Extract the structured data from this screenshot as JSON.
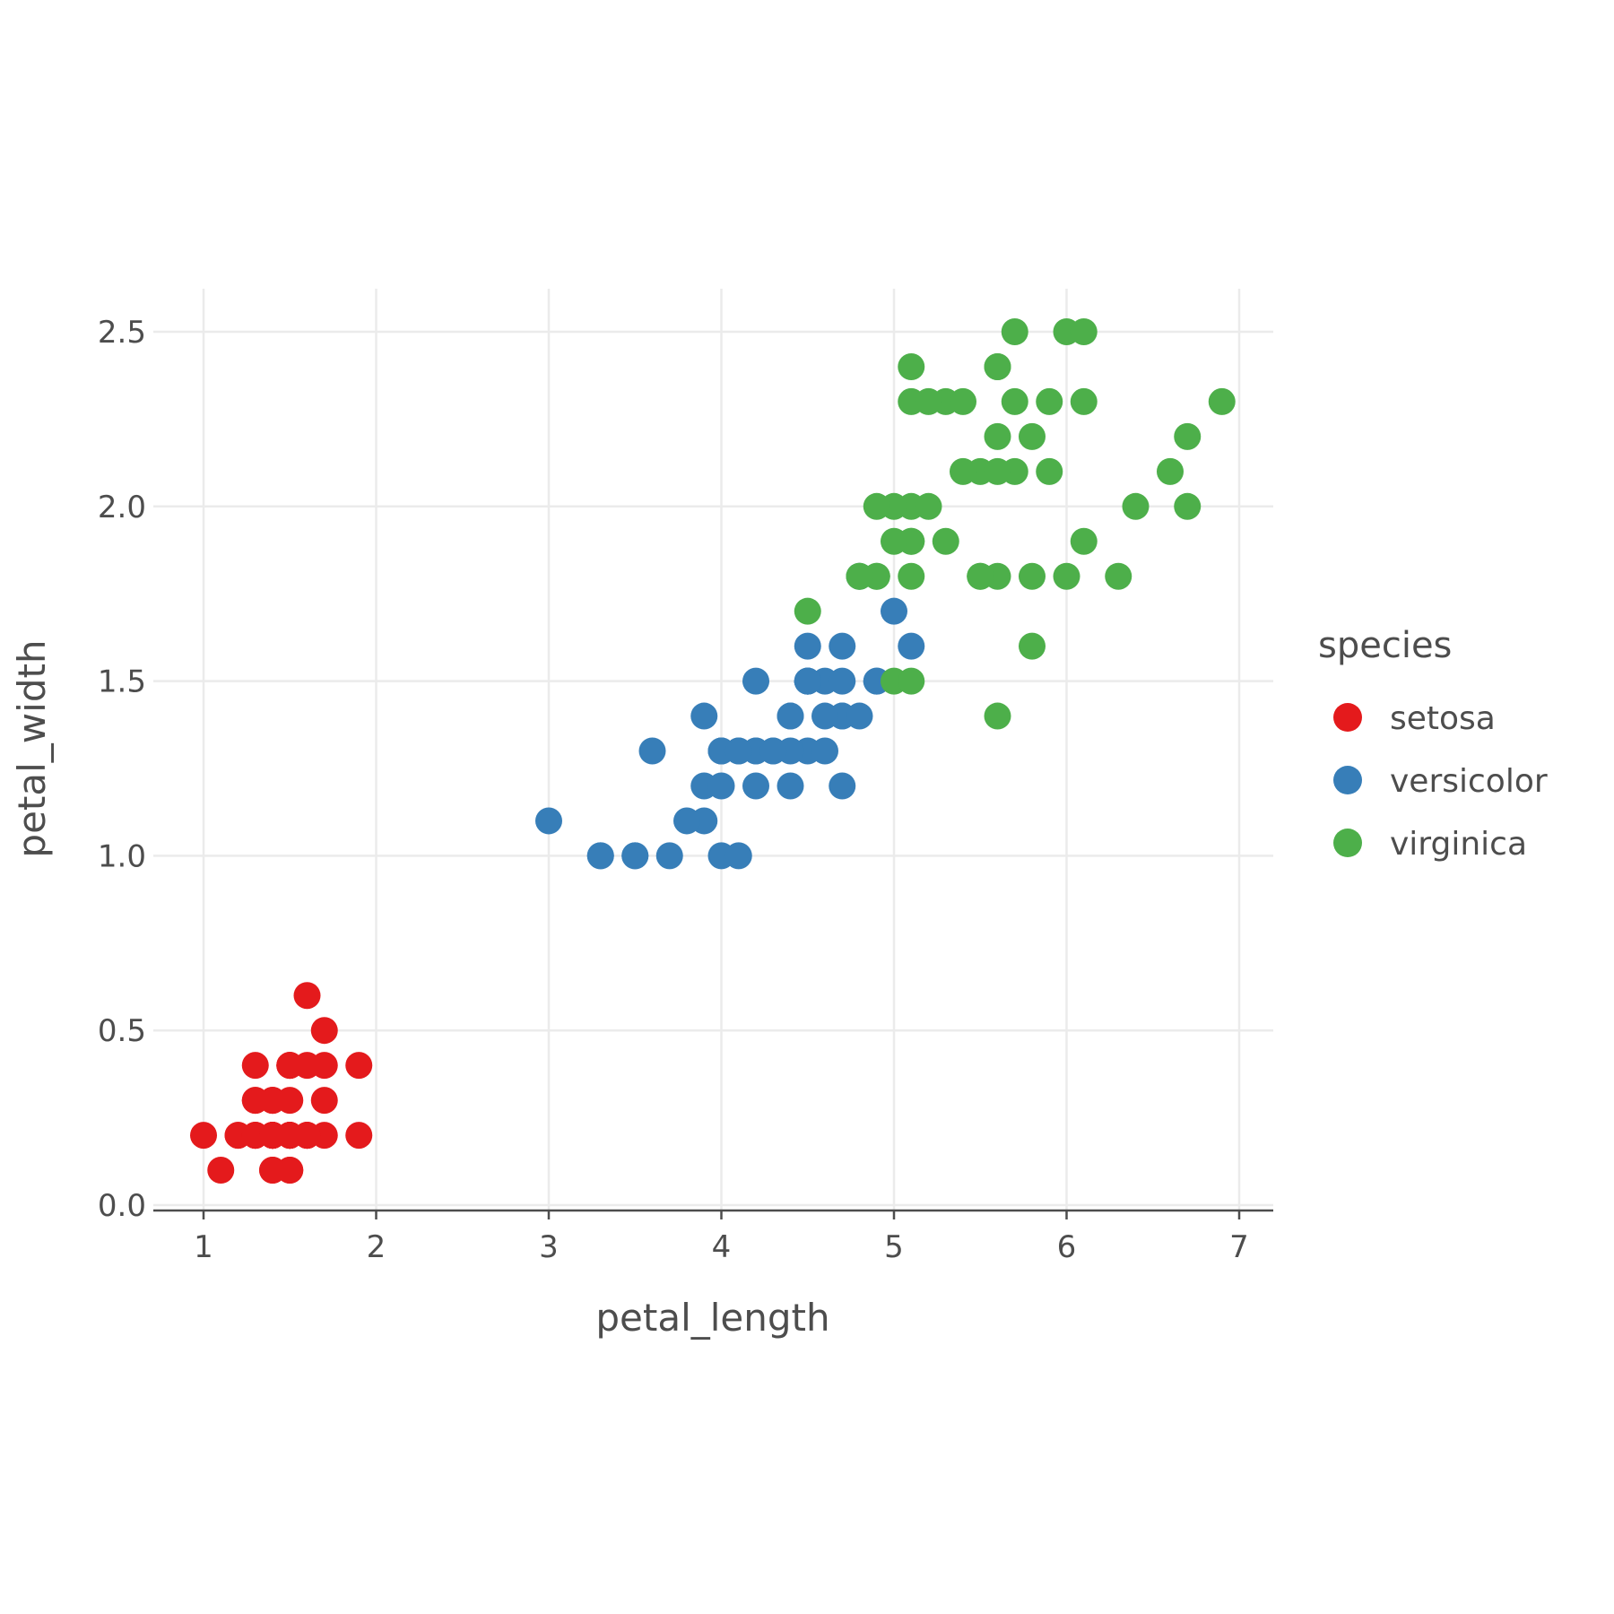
{
  "chart_data": {
    "type": "scatter",
    "title": "",
    "xlabel": "petal_length",
    "ylabel": "petal_width",
    "xlim": [
      0.71,
      7.2
    ],
    "ylim": [
      -0.02,
      2.62
    ],
    "xticks": [
      1,
      2,
      3,
      4,
      5,
      6,
      7
    ],
    "xtick_labels": [
      "1",
      "2",
      "3",
      "4",
      "5",
      "6",
      "7"
    ],
    "yticks": [
      0.0,
      0.5,
      1.0,
      1.5,
      2.0,
      2.5
    ],
    "ytick_labels": [
      "0.0",
      "0.5",
      "1.0",
      "1.5",
      "2.0",
      "2.5"
    ],
    "grid": true,
    "legend": {
      "title": "species",
      "placement": "right"
    },
    "series": [
      {
        "name": "setosa",
        "color": "#e41a1c",
        "points": [
          [
            1.4,
            0.2
          ],
          [
            1.4,
            0.2
          ],
          [
            1.3,
            0.2
          ],
          [
            1.5,
            0.2
          ],
          [
            1.4,
            0.2
          ],
          [
            1.7,
            0.4
          ],
          [
            1.4,
            0.3
          ],
          [
            1.5,
            0.2
          ],
          [
            1.4,
            0.2
          ],
          [
            1.5,
            0.1
          ],
          [
            1.5,
            0.2
          ],
          [
            1.6,
            0.2
          ],
          [
            1.4,
            0.1
          ],
          [
            1.1,
            0.1
          ],
          [
            1.2,
            0.2
          ],
          [
            1.5,
            0.4
          ],
          [
            1.3,
            0.4
          ],
          [
            1.4,
            0.3
          ],
          [
            1.7,
            0.3
          ],
          [
            1.5,
            0.3
          ],
          [
            1.7,
            0.2
          ],
          [
            1.5,
            0.4
          ],
          [
            1.0,
            0.2
          ],
          [
            1.7,
            0.5
          ],
          [
            1.9,
            0.2
          ],
          [
            1.6,
            0.2
          ],
          [
            1.6,
            0.4
          ],
          [
            1.5,
            0.2
          ],
          [
            1.4,
            0.2
          ],
          [
            1.6,
            0.2
          ],
          [
            1.6,
            0.2
          ],
          [
            1.5,
            0.4
          ],
          [
            1.5,
            0.1
          ],
          [
            1.4,
            0.2
          ],
          [
            1.5,
            0.2
          ],
          [
            1.2,
            0.2
          ],
          [
            1.3,
            0.2
          ],
          [
            1.4,
            0.1
          ],
          [
            1.3,
            0.2
          ],
          [
            1.5,
            0.2
          ],
          [
            1.3,
            0.3
          ],
          [
            1.3,
            0.3
          ],
          [
            1.3,
            0.2
          ],
          [
            1.6,
            0.6
          ],
          [
            1.9,
            0.4
          ],
          [
            1.4,
            0.3
          ],
          [
            1.6,
            0.2
          ],
          [
            1.4,
            0.2
          ],
          [
            1.5,
            0.2
          ],
          [
            1.4,
            0.2
          ]
        ]
      },
      {
        "name": "versicolor",
        "color": "#377eb8",
        "points": [
          [
            4.7,
            1.4
          ],
          [
            4.5,
            1.5
          ],
          [
            4.9,
            1.5
          ],
          [
            4.0,
            1.3
          ],
          [
            4.6,
            1.5
          ],
          [
            4.5,
            1.3
          ],
          [
            4.7,
            1.6
          ],
          [
            3.3,
            1.0
          ],
          [
            4.6,
            1.3
          ],
          [
            3.9,
            1.4
          ],
          [
            3.5,
            1.0
          ],
          [
            4.2,
            1.5
          ],
          [
            4.0,
            1.0
          ],
          [
            4.7,
            1.4
          ],
          [
            3.6,
            1.3
          ],
          [
            4.4,
            1.4
          ],
          [
            4.5,
            1.5
          ],
          [
            4.1,
            1.0
          ],
          [
            4.5,
            1.5
          ],
          [
            3.9,
            1.1
          ],
          [
            4.8,
            1.8
          ],
          [
            4.0,
            1.3
          ],
          [
            4.9,
            1.5
          ],
          [
            4.7,
            1.2
          ],
          [
            4.3,
            1.3
          ],
          [
            4.4,
            1.4
          ],
          [
            4.8,
            1.4
          ],
          [
            5.0,
            1.7
          ],
          [
            4.5,
            1.5
          ],
          [
            3.5,
            1.0
          ],
          [
            3.8,
            1.1
          ],
          [
            3.7,
            1.0
          ],
          [
            3.9,
            1.2
          ],
          [
            5.1,
            1.6
          ],
          [
            4.5,
            1.5
          ],
          [
            4.5,
            1.6
          ],
          [
            4.7,
            1.5
          ],
          [
            4.4,
            1.3
          ],
          [
            4.1,
            1.3
          ],
          [
            4.0,
            1.3
          ],
          [
            4.4,
            1.2
          ],
          [
            4.6,
            1.4
          ],
          [
            4.0,
            1.2
          ],
          [
            3.3,
            1.0
          ],
          [
            4.2,
            1.3
          ],
          [
            4.2,
            1.2
          ],
          [
            4.2,
            1.3
          ],
          [
            4.3,
            1.3
          ],
          [
            3.0,
            1.1
          ],
          [
            4.1,
            1.3
          ]
        ]
      },
      {
        "name": "virginica",
        "color": "#4daf4a",
        "points": [
          [
            6.0,
            2.5
          ],
          [
            5.1,
            1.9
          ],
          [
            5.9,
            2.1
          ],
          [
            5.6,
            1.8
          ],
          [
            5.8,
            2.2
          ],
          [
            6.6,
            2.1
          ],
          [
            4.5,
            1.7
          ],
          [
            6.3,
            1.8
          ],
          [
            5.8,
            1.8
          ],
          [
            6.1,
            2.5
          ],
          [
            5.1,
            2.0
          ],
          [
            5.3,
            1.9
          ],
          [
            5.5,
            2.1
          ],
          [
            5.0,
            2.0
          ],
          [
            5.1,
            2.4
          ],
          [
            5.3,
            2.3
          ],
          [
            5.5,
            1.8
          ],
          [
            6.7,
            2.2
          ],
          [
            6.9,
            2.3
          ],
          [
            5.0,
            1.5
          ],
          [
            5.7,
            2.3
          ],
          [
            4.9,
            2.0
          ],
          [
            6.7,
            2.0
          ],
          [
            4.9,
            1.8
          ],
          [
            5.7,
            2.1
          ],
          [
            6.0,
            1.8
          ],
          [
            4.8,
            1.8
          ],
          [
            4.9,
            1.8
          ],
          [
            5.6,
            2.1
          ],
          [
            5.8,
            1.6
          ],
          [
            6.1,
            1.9
          ],
          [
            6.4,
            2.0
          ],
          [
            5.6,
            2.2
          ],
          [
            5.1,
            1.5
          ],
          [
            5.6,
            1.4
          ],
          [
            6.1,
            2.3
          ],
          [
            5.6,
            2.4
          ],
          [
            5.5,
            1.8
          ],
          [
            4.8,
            1.8
          ],
          [
            5.4,
            2.1
          ],
          [
            5.6,
            2.4
          ],
          [
            5.1,
            2.3
          ],
          [
            5.1,
            1.9
          ],
          [
            5.9,
            2.3
          ],
          [
            5.7,
            2.5
          ],
          [
            5.2,
            2.3
          ],
          [
            5.0,
            1.9
          ],
          [
            5.2,
            2.0
          ],
          [
            5.4,
            2.3
          ],
          [
            5.1,
            1.8
          ]
        ]
      }
    ]
  }
}
